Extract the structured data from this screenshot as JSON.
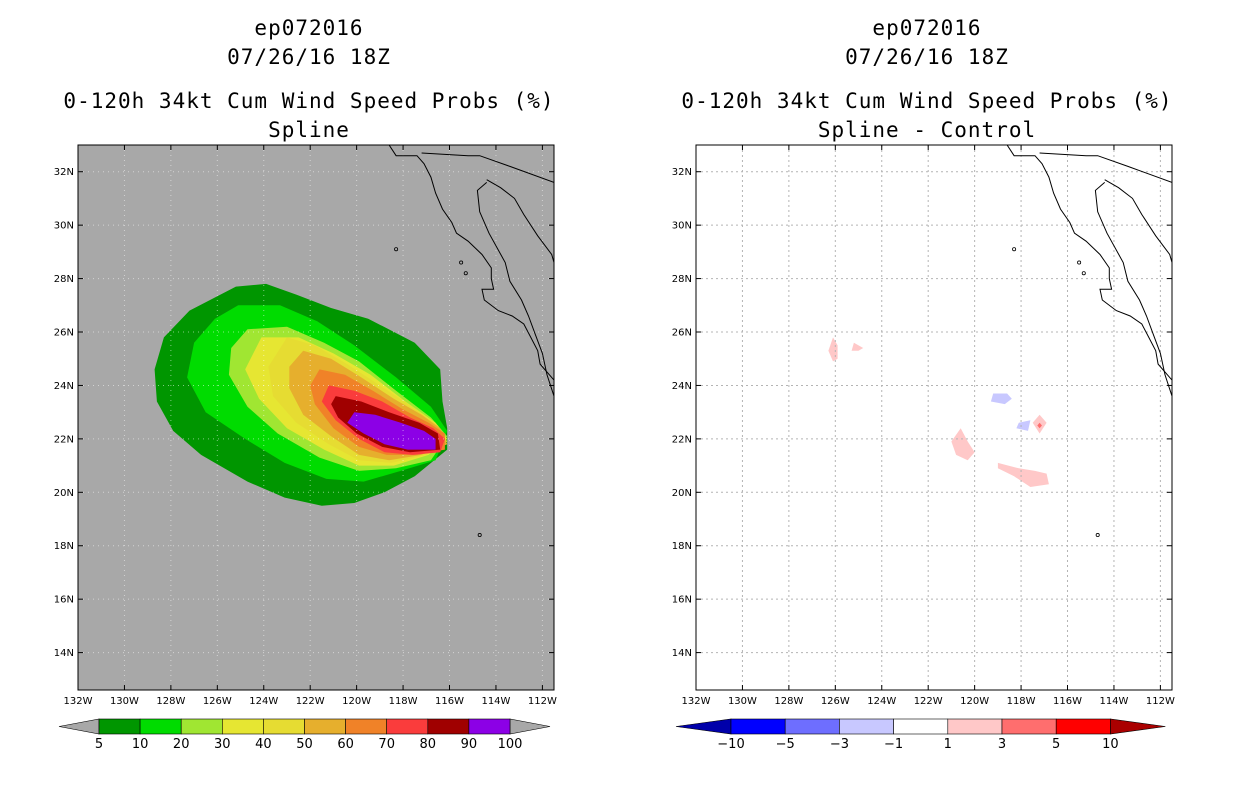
{
  "chart_data": [
    {
      "type": "heatmap",
      "storm_id": "ep072016",
      "date": "07/26/16 18Z",
      "title": "0-120h 34kt Cum Wind Speed Probs (%)",
      "subtitle": "Spline",
      "background": "#a8a8a8",
      "grid": false,
      "x_ticks": [
        "132W",
        "130W",
        "128W",
        "126W",
        "124W",
        "122W",
        "120W",
        "118W",
        "116W",
        "114W",
        "112W"
      ],
      "y_ticks": [
        "14N",
        "16N",
        "18N",
        "20N",
        "22N",
        "24N",
        "26N",
        "28N",
        "30N",
        "32N"
      ],
      "xlim": [
        -132,
        -111.5
      ],
      "ylim": [
        12.6,
        33
      ],
      "colorbar": {
        "levels": [
          5,
          10,
          20,
          30,
          40,
          50,
          60,
          70,
          80,
          90,
          100
        ],
        "colors": [
          "#009600",
          "#00dc00",
          "#a0e632",
          "#e6e632",
          "#e6dc32",
          "#e6af2d",
          "#f08228",
          "#fa3c3c",
          "#a00000",
          "#8c00e6"
        ],
        "labels": [
          "5",
          "10",
          "20",
          "30",
          "40",
          "50",
          "60",
          "70",
          "80",
          "90",
          "100"
        ]
      }
    },
    {
      "type": "heatmap",
      "storm_id": "ep072016",
      "date": "07/26/16 18Z",
      "title": "0-120h 34kt Cum Wind Speed Probs (%)",
      "subtitle": "Spline - Control",
      "background": "#ffffff",
      "grid": true,
      "x_ticks": [
        "132W",
        "130W",
        "128W",
        "126W",
        "124W",
        "122W",
        "120W",
        "118W",
        "116W",
        "114W",
        "112W"
      ],
      "y_ticks": [
        "14N",
        "16N",
        "18N",
        "20N",
        "22N",
        "24N",
        "26N",
        "28N",
        "30N",
        "32N"
      ],
      "xlim": [
        -132,
        -111.5
      ],
      "ylim": [
        12.6,
        33
      ],
      "colorbar": {
        "levels": [
          -10,
          -5,
          -3,
          -1,
          1,
          3,
          5,
          10
        ],
        "colors": [
          "#0000aa",
          "#0000ff",
          "#6e6eff",
          "#c8c8ff",
          "#ffffff",
          "#ffc8c8",
          "#ff6e6e",
          "#ff0000",
          "#aa0000"
        ],
        "labels": [
          "-10",
          "-5",
          "-3",
          "-1",
          "1",
          "3",
          "5",
          "10"
        ]
      }
    }
  ]
}
